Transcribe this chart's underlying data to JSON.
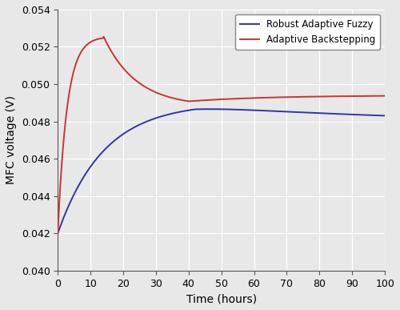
{
  "title": "",
  "xlabel": "Time (hours)",
  "ylabel": "MFC voltage (V)",
  "xlim": [
    0,
    100
  ],
  "ylim": [
    0.04,
    0.054
  ],
  "xticks": [
    0,
    10,
    20,
    30,
    40,
    50,
    60,
    70,
    80,
    90,
    100
  ],
  "yticks": [
    0.04,
    0.042,
    0.044,
    0.046,
    0.048,
    0.05,
    0.052,
    0.054
  ],
  "blue_color": "#3333AA",
  "red_color": "#CC3333",
  "legend_labels": [
    "Robust Adaptive Fuzzy",
    "Adaptive Backstepping"
  ],
  "ax_facecolor": "#E8E8E8",
  "fig_facecolor": "#E8E8E8",
  "grid_color": "#FFFFFF",
  "figsize": [
    5.0,
    3.87
  ],
  "dpi": 100
}
